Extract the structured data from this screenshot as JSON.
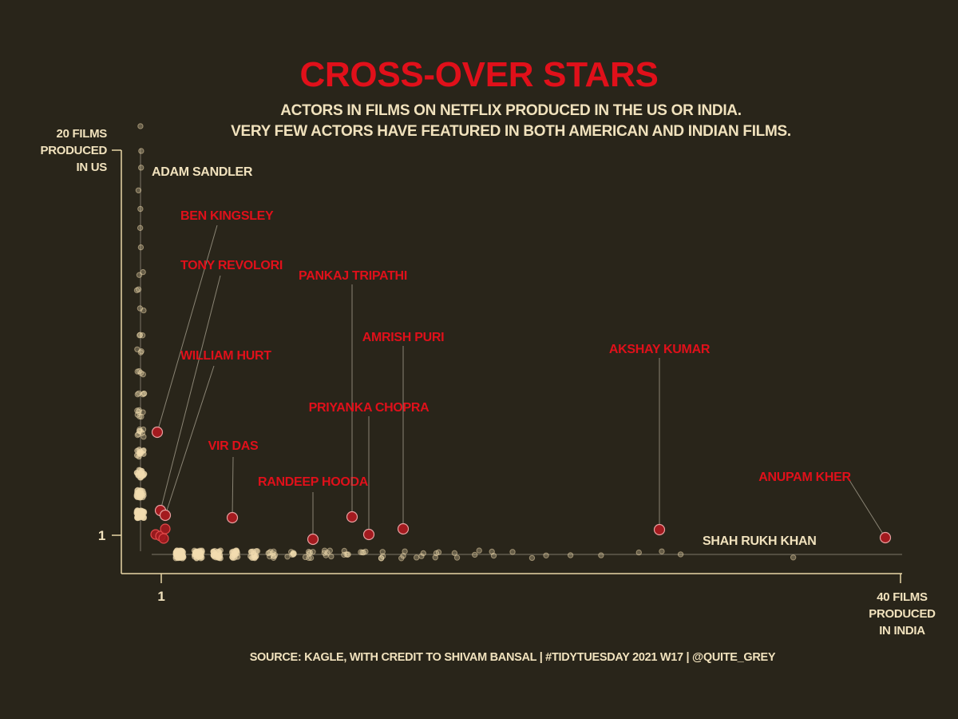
{
  "chart_data": {
    "type": "scatter",
    "title": "CROSS-OVER STARS",
    "subtitle": [
      "ACTORS IN FILMS ON NETFLIX PRODUCED IN THE US OR INDIA.",
      "VERY FEW ACTORS HAVE FEATURED IN BOTH AMERICAN AND INDIAN FILMS."
    ],
    "xlabel": [
      "40 FILMS",
      "PRODUCED",
      "IN INDIA"
    ],
    "ylabel": [
      "20 FILMS",
      "PRODUCED",
      "IN US"
    ],
    "x_tick_labels": [
      "1"
    ],
    "y_tick_labels": [
      "1"
    ],
    "xlim": [
      0,
      40
    ],
    "ylim": [
      0,
      20
    ],
    "caption": "SOURCE: KAGLE, WITH CREDIT TO SHIVAM BANSAL   |  #TIDYTUESDAY 2021 W17  |  @QUITE_GREY",
    "colors": {
      "background": "#29251a",
      "axis": "#e9d6a6",
      "points": "#f3ddb0",
      "highlight": "#e0101a",
      "highlight_fill": "#a31a1f",
      "text": "#f1e2bd"
    },
    "named_actors": [
      {
        "name": "ADAM SANDLER",
        "x": 0,
        "y": 20,
        "highlight": false
      },
      {
        "name": "SHAH RUKH KHAN",
        "x": 39,
        "y": 0,
        "highlight": false
      },
      {
        "name": "BEN KINGSLEY",
        "x": 1,
        "y": 6,
        "highlight": true
      },
      {
        "name": "TONY REVOLORI",
        "x": 1,
        "y": 1,
        "highlight": true
      },
      {
        "name": "WILLIAM HURT",
        "x": 1,
        "y": 1,
        "highlight": true
      },
      {
        "name": "VIR DAS",
        "x": 5,
        "y": 1,
        "highlight": true
      },
      {
        "name": "RANDEEP HOODA",
        "x": 9,
        "y": 1,
        "highlight": true
      },
      {
        "name": "PANKAJ TRIPATHI",
        "x": 11,
        "y": 1,
        "highlight": true
      },
      {
        "name": "PRIYANKA CHOPRA",
        "x": 12,
        "y": 1,
        "highlight": true
      },
      {
        "name": "AMRISH PURI",
        "x": 13,
        "y": 1,
        "highlight": true
      },
      {
        "name": "AKSHAY KUMAR",
        "x": 27,
        "y": 1,
        "highlight": true
      },
      {
        "name": "ANUPAM KHER",
        "x": 38,
        "y": 1,
        "highlight": true
      }
    ],
    "grid": false,
    "legend": "none"
  }
}
